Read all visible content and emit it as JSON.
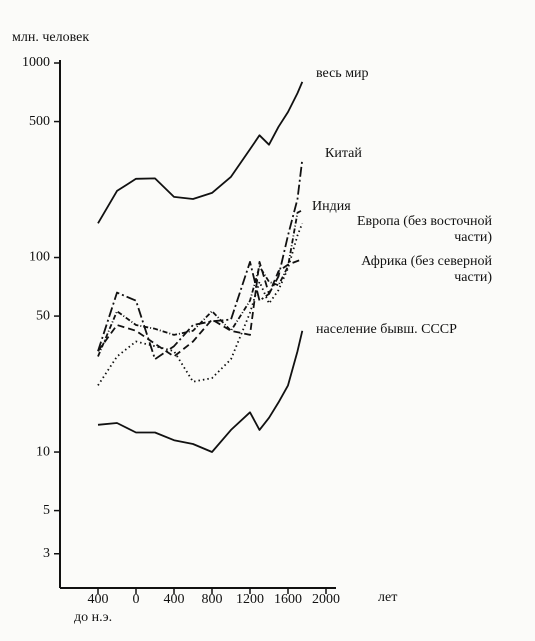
{
  "chart_data": {
    "type": "line",
    "log_y": true,
    "y_label": "млн. человек",
    "x_label": "лет",
    "x_note": "до н.э.",
    "x": [
      -400,
      -200,
      0,
      200,
      400,
      600,
      800,
      1000,
      1200,
      1300,
      1400,
      1500,
      1600,
      1700,
      1750
    ],
    "xlim": [
      -800,
      2100
    ],
    "xticks": [
      {
        "value": -400,
        "label": "400"
      },
      0,
      400,
      800,
      1200,
      1600,
      2000
    ],
    "ylim": [
      2,
      1000
    ],
    "yticks": [
      1000,
      500,
      100,
      50,
      10,
      5,
      3
    ],
    "series": [
      {
        "name": "весь мир",
        "color": "#111111",
        "dash": "none",
        "values": [
          150,
          220,
          254,
          255,
          205,
          200,
          215,
          260,
          360,
          425,
          380,
          470,
          560,
          700,
          800
        ]
      },
      {
        "name": "Китай",
        "color": "#111111",
        "dash": "10 3 2 3",
        "values": [
          33,
          66,
          60,
          30,
          35,
          45,
          47,
          48,
          95,
          60,
          65,
          80,
          130,
          200,
          320
        ]
      },
      {
        "name": "Индия",
        "color": "#111111",
        "dash": "5 2 1 2",
        "values": [
          31,
          53,
          45,
          43,
          40,
          42,
          53,
          42,
          60,
          90,
          75,
          72,
          90,
          170,
          175
        ]
      },
      {
        "name": "Европа (без восточной части)",
        "color": "#111111",
        "dash": "1.5 3",
        "values": [
          22,
          31,
          37,
          35,
          33,
          23,
          24,
          30,
          52,
          75,
          58,
          68,
          88,
          130,
          150
        ]
      },
      {
        "name": "Африка (без северной части)",
        "color": "#111111",
        "dash": "7 4",
        "values": [
          33,
          45,
          42,
          36,
          31,
          37,
          48,
          42,
          40,
          95,
          65,
          85,
          92,
          96,
          98
        ]
      },
      {
        "name": "население бывш. СССР",
        "color": "#111111",
        "dash": "none",
        "values": [
          13.8,
          14.1,
          12.6,
          12.6,
          11.5,
          11,
          10,
          13,
          16,
          13,
          15,
          18,
          22,
          33,
          42
        ]
      }
    ]
  }
}
